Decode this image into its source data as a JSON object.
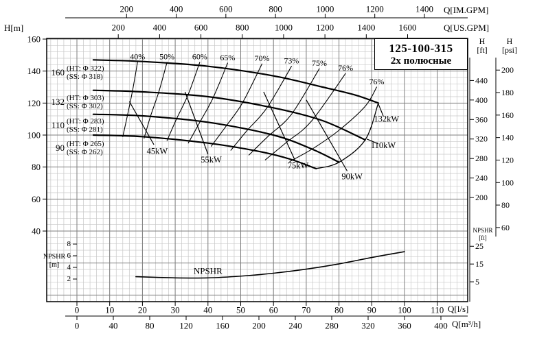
{
  "title": {
    "model": "125-100-315",
    "poles": "2х полюсные"
  },
  "axis_labels": {
    "h_m": "H[m]",
    "q_im": "Q[IM.GPM]",
    "q_us": "Q[US.GPM]",
    "q_ls": "Q[l/s]",
    "q_m3h": "Q[m³/h]",
    "h_ft_h": "H",
    "h_ft_u": "[ft]",
    "h_psi_h": "H",
    "h_psi_u": "[psi]",
    "npshr_m_t": "NPSHR",
    "npshr_m_u": "[m]",
    "npshr_ft_t": "NPSHR",
    "npshr_ft_u": "[ft]"
  },
  "chart_data": {
    "type": "line",
    "title": "125-100-315 2х полюсные — centrifugal pump performance curves",
    "xlabel": "Q [l/s]",
    "ylabel": "H [m]",
    "x_axis_range_ls": [
      0,
      119
    ],
    "y_axis_range_m": [
      20,
      160
    ],
    "grid": true,
    "x_axes": {
      "im_gpm": {
        "label": "Q[IM.GPM]",
        "ticks": [
          200,
          400,
          600,
          800,
          1000,
          1200,
          1400
        ]
      },
      "us_gpm": {
        "label": "Q[US.GPM]",
        "ticks": [
          200,
          400,
          600,
          800,
          1000,
          1200,
          1400,
          1600
        ]
      },
      "l_per_s": {
        "label": "Q[l/s]",
        "ticks": [
          0,
          10,
          20,
          30,
          40,
          50,
          60,
          70,
          80,
          90,
          100,
          110
        ]
      },
      "m3_per_h": {
        "label": "Q[m³/h]",
        "ticks": [
          0,
          40,
          80,
          120,
          160,
          200,
          240,
          280,
          320,
          360,
          400
        ]
      }
    },
    "y_axes": {
      "h_m": {
        "label": "H[m]",
        "ticks": [
          160,
          140,
          120,
          100,
          80,
          60,
          40
        ]
      },
      "h_ft": {
        "label": "H [ft]",
        "ticks": [
          440,
          400,
          360,
          320,
          280,
          240,
          200
        ]
      },
      "h_psi": {
        "label": "H [psi]",
        "ticks": [
          200,
          180,
          160,
          140,
          120,
          100,
          80,
          60
        ]
      },
      "npshr_m": {
        "label": "NPSHR [m]",
        "ticks": [
          8,
          6,
          4,
          2
        ]
      },
      "npshr_ft": {
        "label": "NPSHR [ft]",
        "ticks": [
          25,
          15,
          5
        ]
      }
    },
    "head_curves": [
      {
        "label": "160",
        "ht": "(HT: Φ 322)",
        "ss": "(SS: Φ 318)",
        "points_ls_m": [
          [
            5,
            147
          ],
          [
            20,
            146
          ],
          [
            40,
            143
          ],
          [
            60,
            137
          ],
          [
            75,
            130
          ],
          [
            85,
            125
          ],
          [
            92,
            120
          ]
        ]
      },
      {
        "label": "132",
        "ht": "(HT: Φ 303)",
        "ss": "(SS: Φ 302)",
        "points_ls_m": [
          [
            5,
            128
          ],
          [
            20,
            127
          ],
          [
            40,
            124
          ],
          [
            60,
            117
          ],
          [
            75,
            109
          ],
          [
            88,
            97
          ]
        ]
      },
      {
        "label": "110",
        "ht": "(HT: Φ 283)",
        "ss": "(SS: Φ 281)",
        "points_ls_m": [
          [
            5,
            113
          ],
          [
            20,
            112
          ],
          [
            40,
            108
          ],
          [
            60,
            100
          ],
          [
            72,
            91
          ],
          [
            80,
            83
          ]
        ]
      },
      {
        "label": "90",
        "ht": "(HT: Φ 265)",
        "ss": "(SS: Φ 262)",
        "points_ls_m": [
          [
            5,
            100
          ],
          [
            20,
            99
          ],
          [
            40,
            95
          ],
          [
            55,
            90
          ],
          [
            65,
            85
          ],
          [
            73,
            79
          ]
        ]
      }
    ],
    "efficiency_curves": [
      {
        "label": "40%",
        "label_pos": [
          18.5,
          149
        ],
        "points_ls_m": [
          [
            18.5,
            145.5
          ],
          [
            17,
            128
          ],
          [
            15.5,
            113
          ],
          [
            14,
            99
          ]
        ]
      },
      {
        "label": "50%",
        "label_pos": [
          27.5,
          149
        ],
        "points_ls_m": [
          [
            27.5,
            145.5
          ],
          [
            25,
            127
          ],
          [
            22.5,
            112
          ],
          [
            20.5,
            98
          ]
        ]
      },
      {
        "label": "60%",
        "label_pos": [
          37.5,
          149
        ],
        "points_ls_m": [
          [
            37.5,
            145.5
          ],
          [
            34,
            125.5
          ],
          [
            30.5,
            110.5
          ],
          [
            27.5,
            96.5
          ]
        ]
      },
      {
        "label": "65%",
        "label_pos": [
          46,
          148.5
        ],
        "points_ls_m": [
          [
            46,
            145
          ],
          [
            41.5,
            123
          ],
          [
            37.5,
            108
          ],
          [
            34,
            95
          ]
        ]
      },
      {
        "label": "70%",
        "label_pos": [
          56.5,
          148
        ],
        "points_ls_m": [
          [
            56.5,
            144.5
          ],
          [
            50.5,
            120
          ],
          [
            45.5,
            105.5
          ],
          [
            41,
            93
          ]
        ]
      },
      {
        "label": "73%",
        "label_pos": [
          65.5,
          146.5
        ],
        "points_ls_m": [
          [
            65.5,
            143
          ],
          [
            58,
            117
          ],
          [
            52,
            103
          ],
          [
            47,
            90.5
          ]
        ]
      },
      {
        "label": "75%",
        "label_pos": [
          74,
          145
        ],
        "points_ls_m": [
          [
            74,
            141.5
          ],
          [
            65.5,
            113
          ],
          [
            58.5,
            99.5
          ],
          [
            52.5,
            87.5
          ]
        ]
      },
      {
        "label": "76%",
        "label_pos": [
          82,
          142
        ],
        "points_ls_m": [
          [
            82,
            138.5
          ],
          [
            71.5,
            108.5
          ],
          [
            64,
            95.5
          ],
          [
            57.5,
            84.5
          ]
        ]
      },
      {
        "label": "76%",
        "label_pos": [
          91.5,
          133.5
        ],
        "points_ls_m": [
          [
            91.5,
            130
          ],
          [
            88,
            118
          ],
          [
            80,
            103
          ],
          [
            72,
            91.5
          ],
          [
            65,
            83.5
          ]
        ]
      }
    ],
    "power_lines": [
      {
        "label": "45kW",
        "label_pos": [
          24.5,
          90
        ],
        "line_ls_m": [
          [
            16,
            121
          ],
          [
            23.5,
            94
          ]
        ]
      },
      {
        "label": "55kW",
        "label_pos": [
          41,
          84.5
        ],
        "line_ls_m": [
          [
            33,
            127
          ],
          [
            40,
            88
          ]
        ]
      },
      {
        "label": "75kW",
        "label_pos": [
          67.5,
          81
        ],
        "line_ls_m": [
          [
            57,
            127
          ],
          [
            66.5,
            84.5
          ]
        ]
      },
      {
        "label": "90kW",
        "label_pos": [
          84,
          74
        ],
        "line_ls_m": [
          [
            70,
            122
          ],
          [
            82.5,
            77.5
          ]
        ]
      },
      {
        "label": "110kW",
        "label_pos": [
          93.5,
          93.5
        ],
        "line_ls_m": [
          [
            88.5,
            97.5
          ],
          [
            92,
            94.5
          ]
        ]
      },
      {
        "label": "132kW",
        "label_pos": [
          94.5,
          110
        ],
        "line_ls_m": [
          [
            92,
            119.5
          ],
          [
            93.5,
            112
          ]
        ]
      }
    ],
    "npshr_curve": {
      "label": "NPSHR",
      "label_pos": [
        40,
        3.4
      ],
      "points_ls_m": [
        [
          18,
          2.4
        ],
        [
          30,
          2.2
        ],
        [
          40,
          2.2
        ],
        [
          50,
          2.5
        ],
        [
          60,
          3.0
        ],
        [
          70,
          3.7
        ],
        [
          80,
          4.6
        ],
        [
          90,
          5.7
        ],
        [
          100,
          6.7
        ]
      ]
    }
  }
}
